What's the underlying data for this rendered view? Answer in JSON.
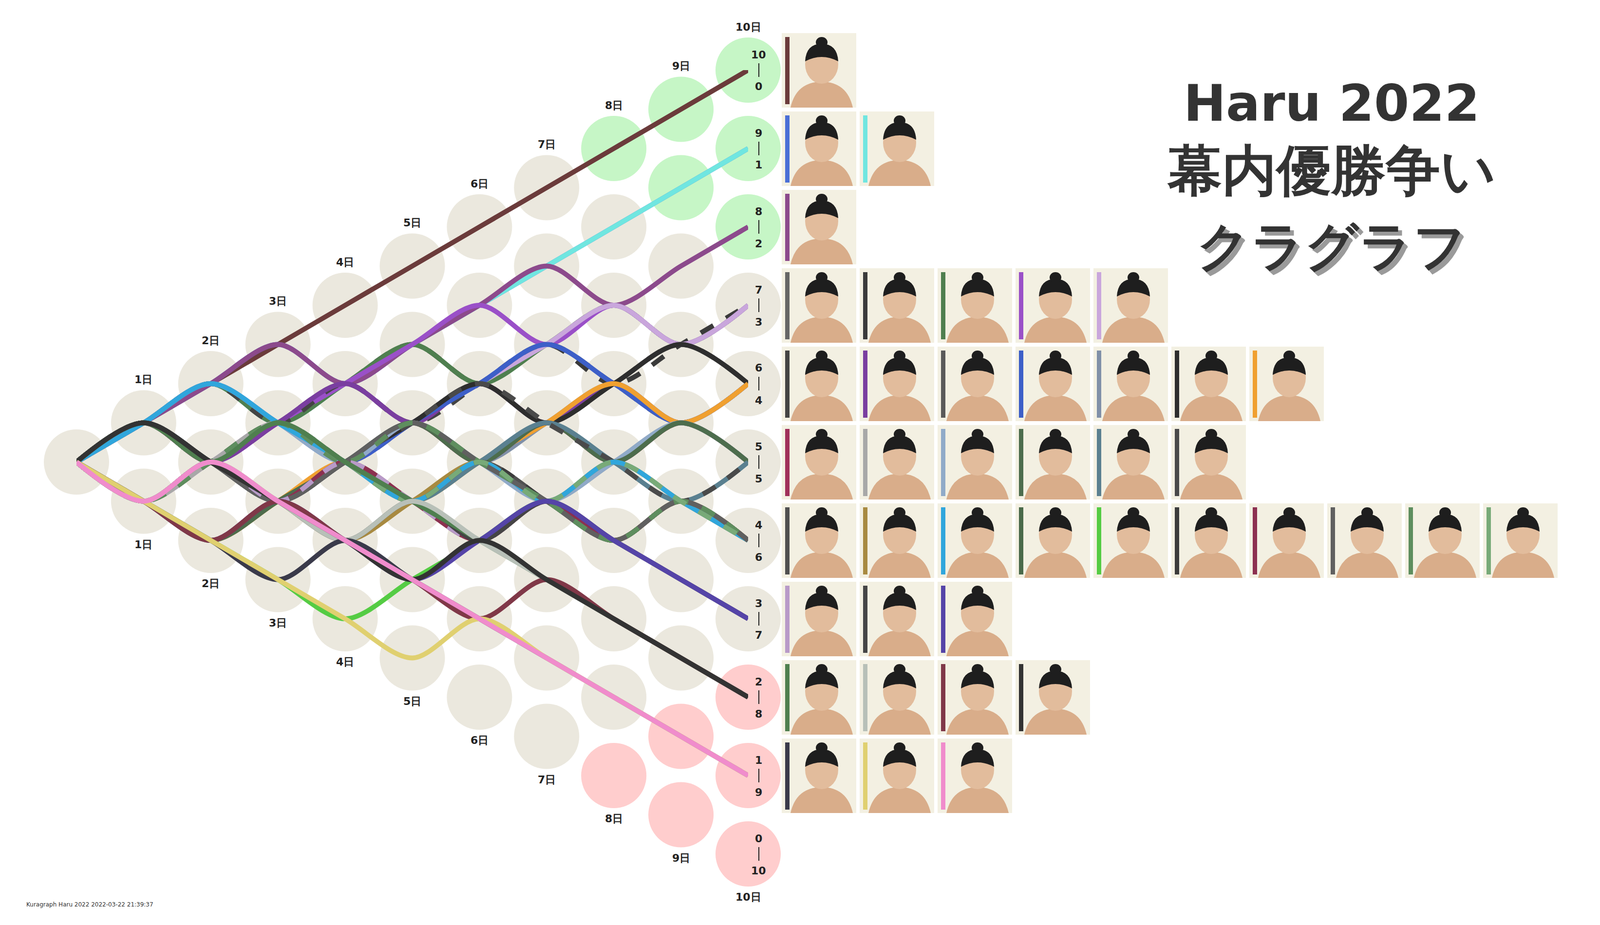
{
  "chart_data": {
    "type": "line",
    "title": "Haru 2022",
    "subtitle": "幕内優勝争い",
    "annotations": [
      "クラグラフ"
    ],
    "footer": "Kuragraph Haru 2022 2022-03-22 21:39:37",
    "x": [
      0,
      1,
      2,
      3,
      4,
      5,
      6,
      7,
      8,
      9,
      10
    ],
    "xlim": [
      0,
      10
    ],
    "ylim": [
      -10,
      10
    ],
    "xticks": [
      {
        "value": 1,
        "label": "1日"
      },
      {
        "value": 2,
        "label": "2日"
      },
      {
        "value": 3,
        "label": "3日"
      },
      {
        "value": 4,
        "label": "4日"
      },
      {
        "value": 5,
        "label": "5日"
      },
      {
        "value": 6,
        "label": "6日"
      },
      {
        "value": 7,
        "label": "7日"
      },
      {
        "value": 8,
        "label": "8日"
      },
      {
        "value": 9,
        "label": "9日"
      },
      {
        "value": 10,
        "label": "10日"
      }
    ],
    "tick_labels": false,
    "grid": false,
    "majority": 8,
    "node_color": "#ebe8de",
    "win_color": "#c6f6c6",
    "loss_color": "#ffcdcd",
    "records": [
      {
        "wins": 10,
        "losses": 0
      },
      {
        "wins": 9,
        "losses": 1
      },
      {
        "wins": 8,
        "losses": 2
      },
      {
        "wins": 7,
        "losses": 3
      },
      {
        "wins": 6,
        "losses": 4
      },
      {
        "wins": 5,
        "losses": 5
      },
      {
        "wins": 4,
        "losses": 6
      },
      {
        "wins": 3,
        "losses": 7
      },
      {
        "wins": 2,
        "losses": 8
      },
      {
        "wins": 1,
        "losses": 9
      },
      {
        "wins": 0,
        "losses": 10
      }
    ],
    "series": [
      {
        "color": "#6b3b3b",
        "values": [
          0,
          1,
          2,
          3,
          4,
          5,
          6,
          7,
          8,
          9,
          10
        ]
      },
      {
        "color": "#4a6fd6",
        "values": [
          0,
          1,
          2,
          3,
          2,
          3,
          4,
          5,
          6,
          7,
          8
        ]
      },
      {
        "color": "#70e6e0",
        "values": [
          0,
          1,
          2,
          1,
          2,
          3,
          4,
          5,
          6,
          7,
          8
        ]
      },
      {
        "color": "#8c4a8c",
        "values": [
          0,
          1,
          2,
          3,
          2,
          3,
          4,
          5,
          4,
          5,
          6
        ]
      },
      {
        "color": "#666666",
        "line_style": "dash",
        "values": [
          0,
          1,
          0,
          1,
          2,
          1,
          2,
          3,
          4,
          3,
          4
        ]
      },
      {
        "color": "#3a3a3a",
        "line_style": "dash",
        "values": [
          0,
          -1,
          0,
          1,
          2,
          3,
          2,
          3,
          2,
          3,
          4
        ]
      },
      {
        "color": "#4f7f4f",
        "values": [
          0,
          1,
          2,
          1,
          2,
          3,
          2,
          3,
          4,
          3,
          4
        ]
      },
      {
        "color": "#9a50c8",
        "values": [
          0,
          1,
          0,
          1,
          2,
          3,
          4,
          3,
          4,
          3,
          4
        ]
      },
      {
        "color": "#c9a6dc",
        "values": [
          0,
          -1,
          0,
          1,
          0,
          1,
          2,
          3,
          4,
          3,
          4
        ]
      },
      {
        "color": "#444444",
        "line_style": "dash",
        "values": [
          0,
          1,
          2,
          1,
          2,
          1,
          2,
          3,
          2,
          1,
          2
        ]
      },
      {
        "color": "#7a3ea0",
        "values": [
          0,
          1,
          0,
          1,
          2,
          1,
          2,
          1,
          2,
          1,
          2
        ]
      },
      {
        "color": "#5a5a5a",
        "line_style": "dash",
        "values": [
          0,
          -1,
          0,
          1,
          0,
          1,
          2,
          1,
          2,
          3,
          2
        ]
      },
      {
        "color": "#3d5fc8",
        "values": [
          0,
          1,
          2,
          1,
          0,
          1,
          2,
          3,
          2,
          1,
          2
        ]
      },
      {
        "color": "#8090a8",
        "values": [
          0,
          -1,
          0,
          -1,
          0,
          1,
          0,
          1,
          2,
          1,
          2
        ]
      },
      {
        "color": "#2e2e2e",
        "values": [
          0,
          1,
          0,
          -1,
          0,
          1,
          2,
          1,
          2,
          3,
          2
        ]
      },
      {
        "color": "#f0a030",
        "values": [
          0,
          -1,
          -2,
          -1,
          0,
          -1,
          0,
          1,
          2,
          1,
          2
        ]
      },
      {
        "color": "#a0305a",
        "values": [
          0,
          1,
          0,
          1,
          0,
          1,
          0,
          1,
          0,
          1,
          0
        ]
      },
      {
        "color": "#a8a8a8",
        "values": [
          0,
          -1,
          0,
          1,
          0,
          -1,
          0,
          -1,
          0,
          1,
          0
        ]
      },
      {
        "color": "#90aac8",
        "values": [
          0,
          1,
          2,
          1,
          0,
          1,
          0,
          -1,
          0,
          1,
          0
        ]
      },
      {
        "color": "#4d6d4d",
        "values": [
          0,
          -1,
          -2,
          -1,
          0,
          1,
          0,
          1,
          0,
          1,
          0
        ]
      },
      {
        "color": "#5a8090",
        "values": [
          0,
          1,
          0,
          -1,
          0,
          -1,
          0,
          1,
          0,
          -1,
          0
        ]
      },
      {
        "color": "#4a4a4a",
        "line_style": "dash",
        "values": [
          0,
          -1,
          0,
          -1,
          0,
          1,
          2,
          1,
          0,
          -1,
          0
        ]
      },
      {
        "color": "#505050",
        "values": [
          0,
          1,
          0,
          -1,
          0,
          -1,
          0,
          -1,
          -2,
          -1,
          -2
        ]
      },
      {
        "color": "#a88a40",
        "values": [
          0,
          -1,
          0,
          -1,
          -2,
          -1,
          0,
          -1,
          0,
          -1,
          -2
        ]
      },
      {
        "color": "#30a6dc",
        "values": [
          0,
          1,
          2,
          1,
          0,
          -1,
          0,
          -1,
          0,
          -1,
          -2
        ]
      },
      {
        "color": "#4a6a4a",
        "line_style": "dash",
        "values": [
          0,
          -1,
          0,
          1,
          0,
          -1,
          -2,
          -1,
          -2,
          -1,
          -2
        ]
      },
      {
        "color": "#55cc44",
        "values": [
          0,
          -1,
          -2,
          -3,
          -4,
          -3,
          -2,
          -1,
          -2,
          -1,
          -2
        ]
      },
      {
        "color": "#3c3c3c",
        "line_style": "dash",
        "values": [
          0,
          1,
          0,
          1,
          0,
          -1,
          0,
          -1,
          -2,
          -1,
          -2
        ]
      },
      {
        "color": "#8c3050",
        "values": [
          0,
          -1,
          0,
          -1,
          0,
          -1,
          -2,
          -1,
          -2,
          -1,
          -2
        ]
      },
      {
        "color": "#606060",
        "values": [
          0,
          1,
          0,
          -1,
          0,
          1,
          0,
          -1,
          -2,
          -1,
          -2
        ]
      },
      {
        "color": "#5e8e5e",
        "line_style": "dash",
        "values": [
          0,
          -1,
          0,
          1,
          0,
          1,
          0,
          -1,
          -2,
          -1,
          -2
        ]
      },
      {
        "color": "#78aa78",
        "line_style": "dash",
        "values": [
          0,
          1,
          0,
          1,
          0,
          -1,
          0,
          -1,
          0,
          -1,
          -2
        ]
      },
      {
        "color": "#b89ac8",
        "line_style": "dash",
        "values": [
          0,
          -1,
          0,
          -1,
          0,
          -1,
          -2,
          -1,
          -2,
          -3,
          -4
        ]
      },
      {
        "color": "#454545",
        "values": [
          0,
          1,
          0,
          -1,
          -2,
          -1,
          -2,
          -1,
          -2,
          -3,
          -4
        ]
      },
      {
        "color": "#5544a8",
        "values": [
          0,
          -1,
          -2,
          -1,
          -2,
          -3,
          -2,
          -1,
          -2,
          -3,
          -4
        ]
      },
      {
        "color": "#4f7f4f",
        "values": [
          0,
          1,
          0,
          1,
          0,
          -1,
          -2,
          -3,
          -4,
          -5,
          -6
        ]
      },
      {
        "color": "#b8c0b8",
        "values": [
          0,
          -1,
          0,
          -1,
          -2,
          -1,
          -2,
          -3,
          -4,
          -5,
          -6
        ]
      },
      {
        "color": "#803848",
        "values": [
          0,
          -1,
          -2,
          -1,
          -2,
          -3,
          -4,
          -3,
          -4,
          -5,
          -6
        ]
      },
      {
        "color": "#333333",
        "values": [
          0,
          1,
          0,
          -1,
          -2,
          -3,
          -2,
          -3,
          -4,
          -5,
          -6
        ]
      },
      {
        "color": "#3a3a4a",
        "values": [
          0,
          -1,
          -2,
          -3,
          -2,
          -3,
          -4,
          -5,
          -6,
          -7,
          -8
        ]
      },
      {
        "color": "#e0d070",
        "values": [
          0,
          -1,
          -2,
          -3,
          -4,
          -5,
          -4,
          -5,
          -6,
          -7,
          -8
        ]
      },
      {
        "color": "#f08ccc",
        "values": [
          0,
          -1,
          0,
          -1,
          -2,
          -3,
          -4,
          -5,
          -6,
          -7,
          -8
        ]
      }
    ]
  }
}
